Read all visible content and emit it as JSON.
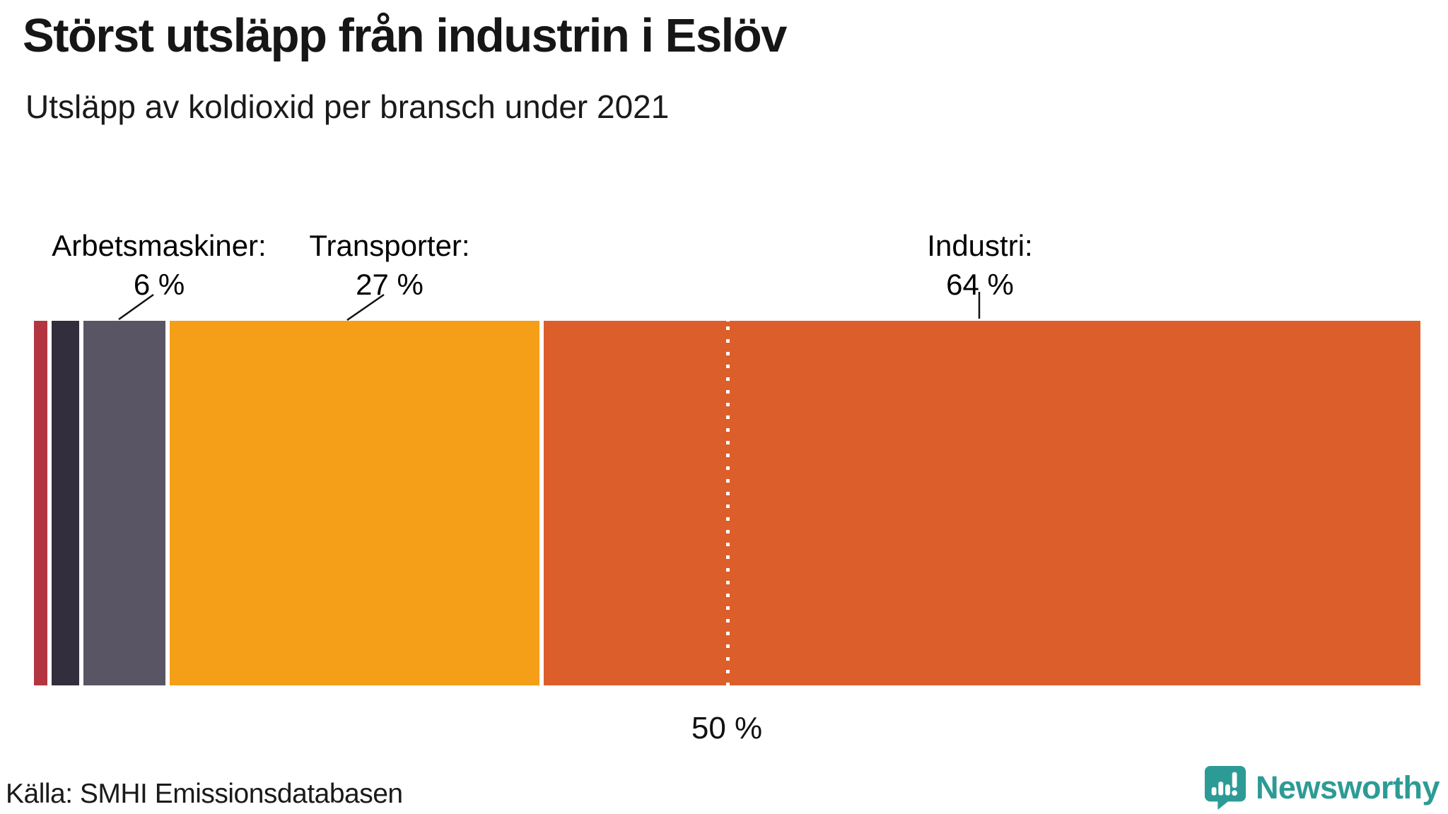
{
  "chart_data": {
    "type": "bar",
    "variant": "single-horizontal-stacked",
    "title": "Störst utsläpp från industrin i Eslöv",
    "subtitle": "Utsläpp av koldioxid per bransch under 2021",
    "unit": "%",
    "xlim": [
      0,
      100
    ],
    "grid": false,
    "legend": "none",
    "segments": [
      {
        "label": "",
        "value": 1,
        "color": "#b23540",
        "annotated": false
      },
      {
        "label": "",
        "value": 2,
        "color": "#322e3e",
        "annotated": false
      },
      {
        "label": "Arbetsmaskiner",
        "value": 6,
        "color": "#595564",
        "annotated": true
      },
      {
        "label": "Transporter",
        "value": 27,
        "color": "#f59e18",
        "annotated": true
      },
      {
        "label": "Industri",
        "value": 64,
        "color": "#dc5e2b",
        "annotated": true
      }
    ],
    "annotations": [
      {
        "text": "Arbetsmaskiner:",
        "value_text": "6 %"
      },
      {
        "text": "Transporter:",
        "value_text": "27 %"
      },
      {
        "text": "Industri:",
        "value_text": "64 %"
      }
    ],
    "reference_line": {
      "value": 50,
      "label": "50 %",
      "style": "dotted-white"
    },
    "source": "Källa: SMHI Emissionsdatabasen"
  },
  "footer": {
    "brand_name": "Newsworthy",
    "brand_color": "#2d9b95",
    "brand_icon": "speech-bubble-bar-chart-icon"
  }
}
